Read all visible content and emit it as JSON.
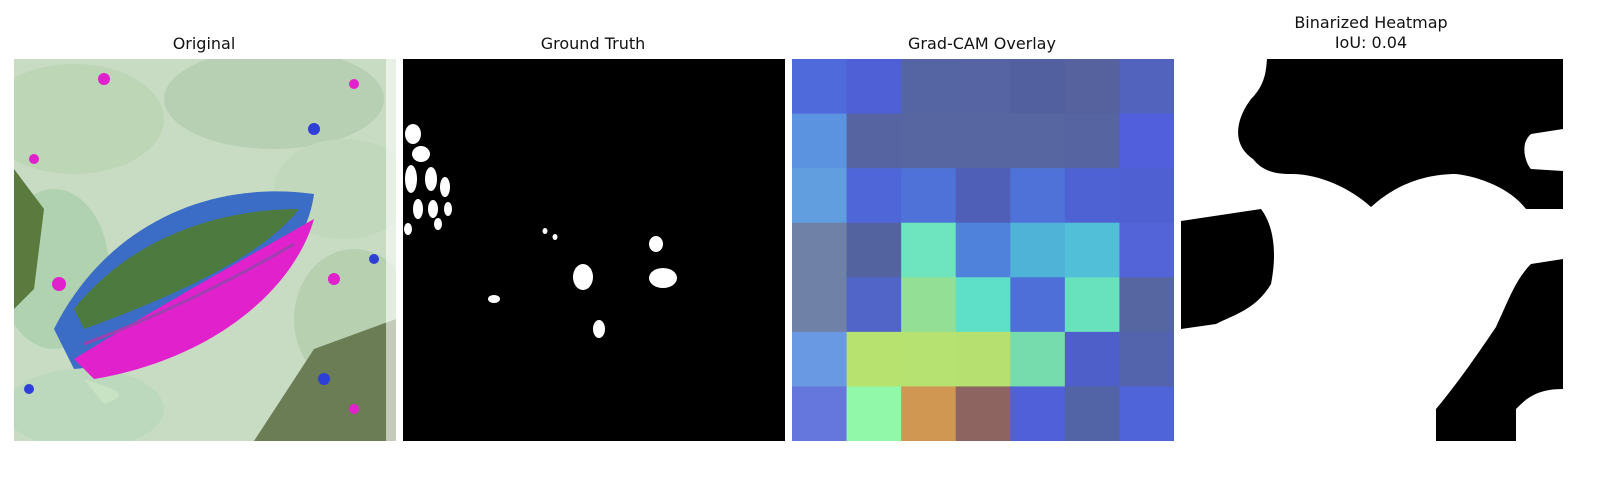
{
  "panels": [
    {
      "id": "original",
      "title": "Original"
    },
    {
      "id": "ground-truth",
      "title": "Ground Truth"
    },
    {
      "id": "gradcam-overlay",
      "title": "Grad-CAM Overlay"
    },
    {
      "id": "binarized-heatmap",
      "title": "Binarized Heatmap",
      "subtitle": "IoU: 0.04"
    }
  ],
  "gradcam_grid": [
    [
      "#4f6adb",
      "#4f5fd6",
      "#5565a3",
      "#5664a3",
      "#52609f",
      "#55629e",
      "#5163bc"
    ],
    [
      "#5c93e0",
      "#5665a1",
      "#5766a0",
      "#5766a0",
      "#5765a0",
      "#5664a2",
      "#525fdc"
    ],
    [
      "#609ee0",
      "#4f66d8",
      "#4f72d8",
      "#4f5fb8",
      "#4f72d8",
      "#4f62d3",
      "#4f60d2"
    ],
    [
      "#6f81a6",
      "#53639f",
      "#6ee4bf",
      "#4f82db",
      "#4fb3d8",
      "#52bfd9",
      "#5264d7"
    ],
    [
      "#6f81a6",
      "#5165c9",
      "#92df95",
      "#5ee0c8",
      "#4f6fd8",
      "#68e1bd",
      "#5666a0"
    ],
    [
      "#6a99e3",
      "#b7e270",
      "#b5e271",
      "#b6e170",
      "#76dcad",
      "#4f5fca",
      "#5364ac"
    ],
    [
      "#6577dd",
      "#92f8a9",
      "#d09752",
      "#8e6460",
      "#4f60d8",
      "#5364a6",
      "#5064da"
    ]
  ]
}
